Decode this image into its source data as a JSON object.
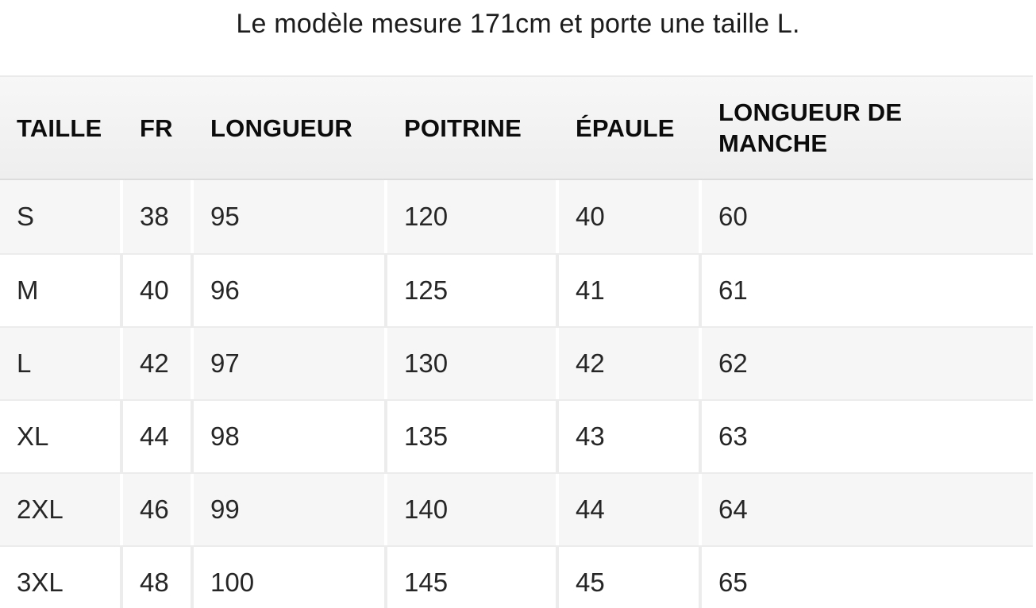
{
  "title": {
    "text": "Le modèle mesure 171cm et porte une taille L."
  },
  "table": {
    "headers": [
      "TAILLE",
      "FR",
      "LONGUEUR",
      "POITRINE",
      "ÉPAULE",
      "LONGUEUR DE MANCHE"
    ],
    "column_keys": [
      "taille",
      "fr",
      "longueur",
      "poitrine",
      "epaule",
      "longueur-de-manche"
    ],
    "rows": [
      [
        "S",
        "38",
        "95",
        "120",
        "40",
        "60"
      ],
      [
        "M",
        "40",
        "96",
        "125",
        "41",
        "61"
      ],
      [
        "L",
        "42",
        "97",
        "130",
        "42",
        "62"
      ],
      [
        "XL",
        "44",
        "98",
        "135",
        "43",
        "63"
      ],
      [
        "2XL",
        "46",
        "99",
        "140",
        "44",
        "64"
      ],
      [
        "3XL",
        "48",
        "100",
        "145",
        "45",
        "65"
      ]
    ]
  },
  "colors": {
    "page_background": "#ffffff",
    "header_background_top": "#f7f7f7",
    "header_background_bottom": "#eeeeee",
    "header_top_border": "#eaeaea",
    "header_bottom_border": "#dcdcdc",
    "row_stripe": "#f6f6f6",
    "row_plain": "#ffffff",
    "grid_line": "#ececec",
    "header_text": "#0c0c0c",
    "cell_text": "#262626",
    "title_text": "#1c1c1c"
  }
}
